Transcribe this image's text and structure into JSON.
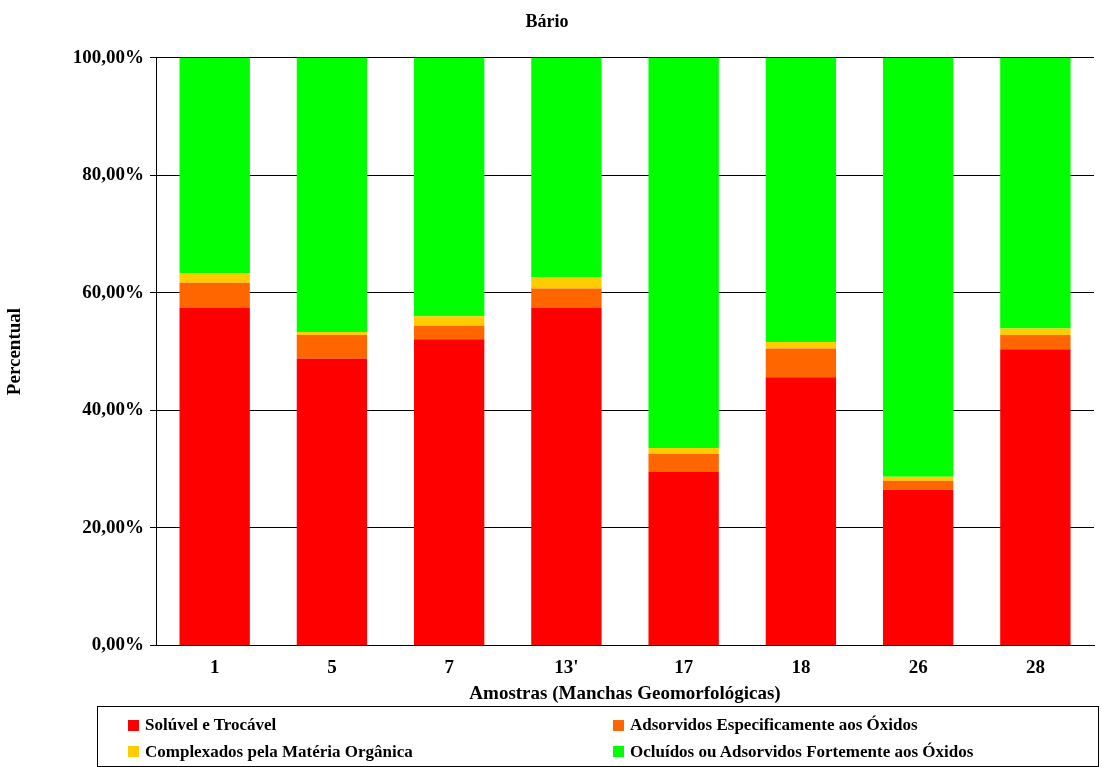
{
  "chart_data": {
    "type": "bar",
    "stacked": true,
    "title": "Bário",
    "xlabel": "Amostras (Manchas Geomorfológicas)",
    "ylabel": "Percentual",
    "categories": [
      "1",
      "5",
      "7",
      "13'",
      "17",
      "18",
      "26",
      "28"
    ],
    "series": [
      {
        "name": "Solúvel e Trocável",
        "color": "#ff0000",
        "values": [
          57.5,
          48.8,
          52.1,
          57.5,
          29.5,
          45.6,
          26.5,
          50.4
        ]
      },
      {
        "name": "Adsorvidos Especificamente aos Óxidos",
        "color": "#ff6600",
        "values": [
          4.2,
          4.0,
          2.3,
          3.2,
          3.1,
          4.9,
          1.5,
          2.4
        ]
      },
      {
        "name": "Complexados pela Matéria Orgânica",
        "color": "#ffcc00",
        "values": [
          1.6,
          0.5,
          1.6,
          1.9,
          1.0,
          1.1,
          0.7,
          1.1
        ]
      },
      {
        "name": "Ocluídos ou Adsorvidos Fortemente aos Óxidos",
        "color": "#00ff00",
        "values": [
          36.7,
          46.7,
          44.0,
          37.4,
          66.4,
          48.4,
          71.3,
          46.1
        ]
      }
    ],
    "ylim": [
      0,
      100
    ],
    "yticks": [
      {
        "value": 0,
        "label": "0,00%"
      },
      {
        "value": 20,
        "label": "20,00%"
      },
      {
        "value": 40,
        "label": "40,00%"
      },
      {
        "value": 60,
        "label": "60,00%"
      },
      {
        "value": 80,
        "label": "80,00%"
      },
      {
        "value": 100,
        "label": "100,00%"
      }
    ],
    "grid": "y",
    "legend": "bottom"
  }
}
